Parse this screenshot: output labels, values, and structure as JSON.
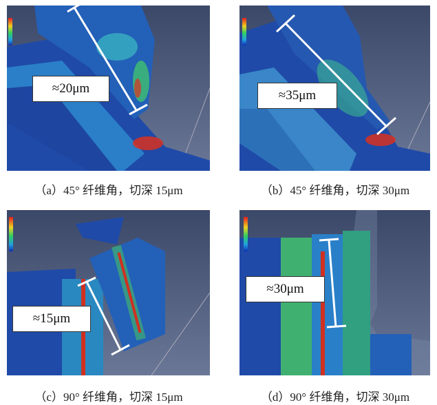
{
  "panels": [
    {
      "measure": "≈20μm",
      "caption": "（a）45° 纤维角，切深 15μm"
    },
    {
      "measure": "≈35μm",
      "caption": "（b）45° 纤维角，切深 30μm"
    },
    {
      "measure": "≈15μm",
      "caption": "（c）90° 纤维角，切深 15μm"
    },
    {
      "measure": "≈30μm",
      "caption": "（d）90° 纤维角，切深 30μm"
    }
  ]
}
